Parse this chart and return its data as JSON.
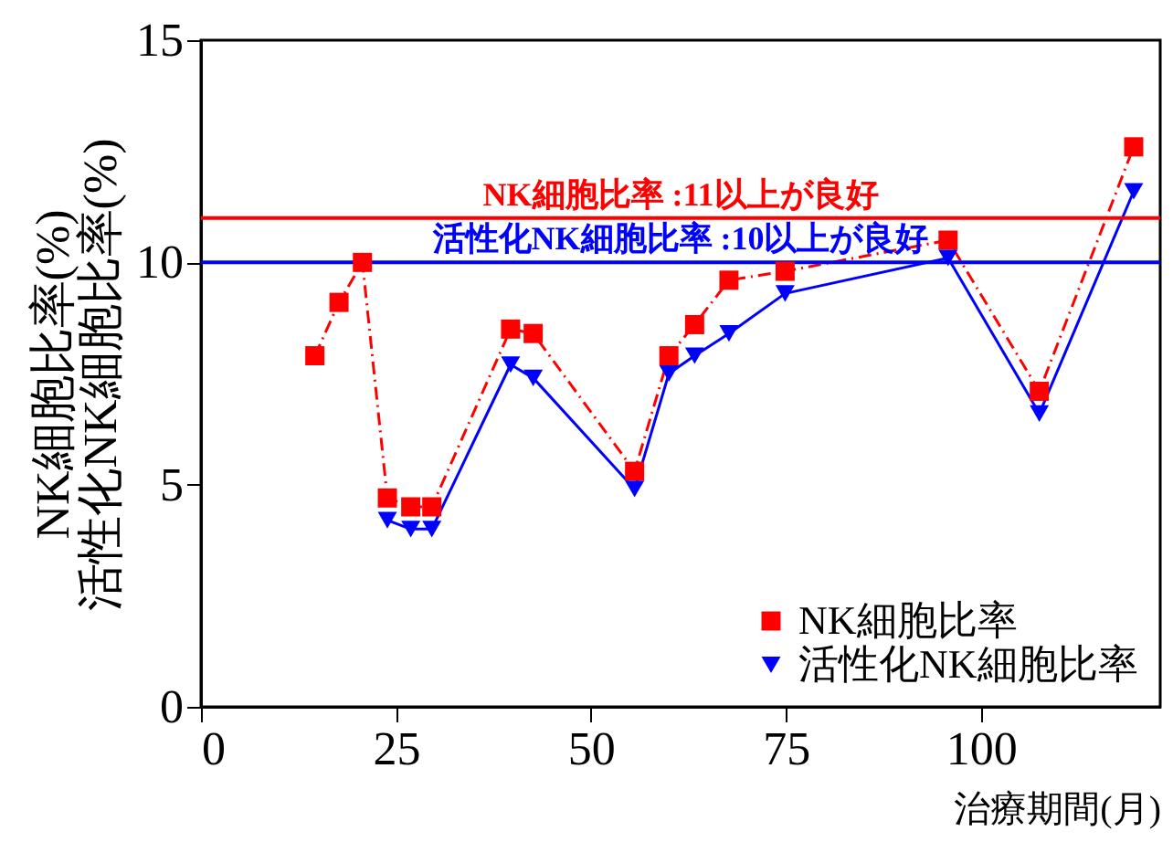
{
  "chart_data": {
    "type": "line",
    "xlabel": "治療期間(月)",
    "ylabel": "NK細胞比率(%)\n活性化NK細胞比率(%)",
    "xlim": [
      0,
      123
    ],
    "xticks": [
      0,
      25,
      50,
      75,
      100
    ],
    "ylim": [
      0,
      15
    ],
    "yticks": [
      0,
      5,
      10,
      15
    ],
    "grid": false,
    "legend": "bottom right",
    "series": [
      {
        "name": "NK細胞比率",
        "color": "#ff0000",
        "marker": "square",
        "line_style": "dashed",
        "x": [
          14.6,
          17.7,
          20.7,
          23.9,
          26.9,
          29.6,
          39.7,
          42.6,
          55.6,
          60.0,
          63.3,
          67.7,
          74.9,
          95.8,
          107.5,
          119.6
        ],
        "values": [
          7.9,
          9.1,
          10.0,
          4.7,
          4.5,
          4.5,
          8.5,
          8.4,
          5.3,
          7.9,
          8.6,
          9.6,
          9.8,
          10.5,
          7.1,
          12.6
        ]
      },
      {
        "name": "活性化NK細胞比率",
        "color": "#0000ff",
        "marker": "triangle",
        "line_style": "solid",
        "x": [
          23.9,
          26.9,
          29.6,
          39.7,
          42.6,
          55.6,
          60.0,
          63.3,
          67.7,
          74.9,
          95.8,
          107.5,
          119.6
        ],
        "values": [
          4.2,
          4.0,
          4.0,
          7.7,
          7.4,
          4.9,
          7.5,
          7.9,
          8.4,
          9.3,
          10.1,
          6.6,
          11.6
        ]
      }
    ],
    "ref_lines": [
      {
        "axis": "y",
        "value": 11,
        "label": "NK細胞比率 :11以上が良好",
        "color": "#ff0000"
      },
      {
        "axis": "y",
        "value": 10,
        "label": "活性化NK細胞比率 :10以上が良好",
        "color": "#0000ff"
      }
    ]
  }
}
